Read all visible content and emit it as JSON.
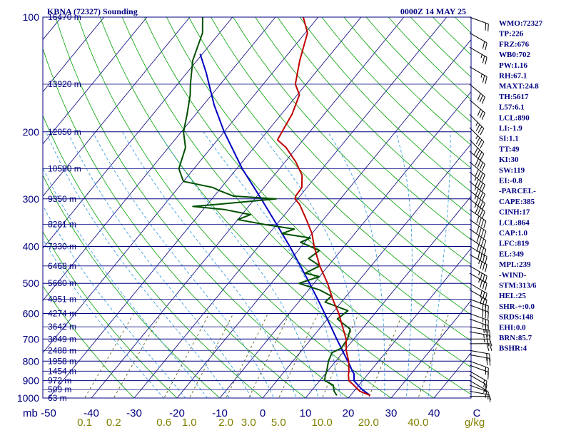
{
  "header": {
    "title": "KBNA (72327) Sounding",
    "datetime": "0000Z 14 MAY 25"
  },
  "indices": [
    "WMO:72327",
    "TP:226",
    "FRZ:676",
    "WB0:702",
    "PW:1.16",
    "RH:67.1",
    "MAXT:24.8",
    "TH:5617",
    "L57:6.1",
    "LCL:890",
    "LI:-1.9",
    "SI:1.1",
    "TT:49",
    "KI:30",
    "SW:119",
    "EI:-0.8",
    "-PARCEL-",
    "CAPE:385",
    "CINH:17",
    "LCL:864",
    "CAP:1.0",
    "LFC:819",
    "EL:349",
    "MPL:239",
    "-WIND-",
    "STM:313/6",
    "HEL:25",
    "SHR-+:0.0",
    "SRDS:148",
    "EHI:0.0",
    "BRN:85.7",
    "BSHR:4"
  ],
  "colors": {
    "frame": "#000080",
    "dry_adiabats": "#00a000",
    "moist_adiabats": "#40a0e0",
    "mixing_ratio": "#505000",
    "temperature": "#c00000",
    "dewpoint": "#005000",
    "parcel": "#0000c0",
    "wind_barbs": "#000000",
    "mixing_labels": "#808000"
  },
  "chart_data": {
    "type": "skew-t",
    "units_label": "mb",
    "mixing_units_label": "g/kg",
    "pressure_labels": [
      "100",
      "200",
      "300",
      "400",
      "500",
      "600",
      "700",
      "800",
      "900",
      "1000"
    ],
    "temperature_labels": [
      "-50",
      "-40",
      "-30",
      "-20",
      "-10",
      "0",
      "10",
      "20",
      "30",
      "40",
      "C"
    ],
    "mixing_ratio_labels": [
      "0.1",
      "0.2",
      "0.6",
      "1.0",
      "2.0",
      "3.0",
      "5.0",
      "10.0",
      "20.0",
      "40.0"
    ],
    "height_levels": [
      {
        "p": 100,
        "label": "16470 m"
      },
      {
        "p": 150,
        "label": "13920 m"
      },
      {
        "p": 200,
        "label": "12050 m"
      },
      {
        "p": 250,
        "label": "10580 m"
      },
      {
        "p": 300,
        "label": "9350 m"
      },
      {
        "p": 350,
        "label": "8281 m"
      },
      {
        "p": 400,
        "label": "7330 m"
      },
      {
        "p": 450,
        "label": "6468 m"
      },
      {
        "p": 500,
        "label": "5680 m"
      },
      {
        "p": 550,
        "label": "4951 m"
      },
      {
        "p": 600,
        "label": "4274 m"
      },
      {
        "p": 650,
        "label": "3642 m"
      },
      {
        "p": 700,
        "label": "3049 m"
      },
      {
        "p": 750,
        "label": "2488 m"
      },
      {
        "p": 800,
        "label": "1958 m"
      },
      {
        "p": 850,
        "label": "1454 m"
      },
      {
        "p": 900,
        "label": "972 m"
      },
      {
        "p": 950,
        "label": "509 m"
      },
      {
        "p": 1000,
        "label": "63 m"
      }
    ],
    "temperature_profile": [
      [
        984,
        24.6
      ],
      [
        960,
        21.4
      ],
      [
        925,
        18.8
      ],
      [
        900,
        16.8
      ],
      [
        870,
        15.6
      ],
      [
        850,
        15.0
      ],
      [
        800,
        13.0
      ],
      [
        750,
        10.4
      ],
      [
        700,
        8.2
      ],
      [
        650,
        5.0
      ],
      [
        600,
        1.6
      ],
      [
        550,
        -2.6
      ],
      [
        500,
        -6.8
      ],
      [
        450,
        -12.0
      ],
      [
        400,
        -17.0
      ],
      [
        370,
        -20.0
      ],
      [
        340,
        -24.0
      ],
      [
        310,
        -28.5
      ],
      [
        300,
        -30.6
      ],
      [
        295,
        -31.0
      ],
      [
        280,
        -31.2
      ],
      [
        260,
        -33.5
      ],
      [
        240,
        -37.5
      ],
      [
        220,
        -42.5
      ],
      [
        210,
        -46.0
      ],
      [
        200,
        -46.5
      ],
      [
        180,
        -47.5
      ],
      [
        160,
        -49.5
      ],
      [
        150,
        -52.5
      ],
      [
        130,
        -56.0
      ],
      [
        110,
        -59.5
      ],
      [
        100,
        -63.5
      ]
    ],
    "dewpoint_profile": [
      [
        984,
        16.8
      ],
      [
        960,
        15.4
      ],
      [
        925,
        14.0
      ],
      [
        900,
        11.2
      ],
      [
        880,
        10.5
      ],
      [
        850,
        9.8
      ],
      [
        800,
        8.3
      ],
      [
        760,
        7.5
      ],
      [
        740,
        8.8
      ],
      [
        700,
        8.5
      ],
      [
        660,
        7.3
      ],
      [
        620,
        2.3
      ],
      [
        590,
        3.2
      ],
      [
        560,
        -3.8
      ],
      [
        540,
        -3.5
      ],
      [
        520,
        -7.5
      ],
      [
        500,
        -13.5
      ],
      [
        480,
        -10.0
      ],
      [
        470,
        -14.0
      ],
      [
        450,
        -12.0
      ],
      [
        430,
        -16.0
      ],
      [
        410,
        -15.0
      ],
      [
        390,
        -21.0
      ],
      [
        380,
        -19.5
      ],
      [
        370,
        -27.0
      ],
      [
        360,
        -25.0
      ],
      [
        350,
        -33.0
      ],
      [
        340,
        -40.0
      ],
      [
        330,
        -38.0
      ],
      [
        320,
        -45.0
      ],
      [
        314,
        -53.0
      ],
      [
        310,
        -47.5
      ],
      [
        300,
        -35.0
      ],
      [
        295,
        -45.5
      ],
      [
        285,
        -50.0
      ],
      [
        280,
        -52.0
      ],
      [
        270,
        -60.0
      ],
      [
        250,
        -63.5
      ],
      [
        220,
        -66.0
      ],
      [
        200,
        -69.5
      ],
      [
        180,
        -72.0
      ],
      [
        160,
        -75.0
      ],
      [
        150,
        -77.0
      ],
      [
        130,
        -81.0
      ],
      [
        110,
        -84.0
      ],
      [
        100,
        -87.0
      ]
    ],
    "parcel_profile": [
      [
        984,
        24.6
      ],
      [
        950,
        21.6
      ],
      [
        920,
        19.4
      ],
      [
        900,
        18.0
      ],
      [
        864,
        16.7
      ],
      [
        850,
        15.8
      ],
      [
        819,
        14.0
      ],
      [
        800,
        12.8
      ],
      [
        750,
        9.5
      ],
      [
        700,
        6.0
      ],
      [
        650,
        2.3
      ],
      [
        600,
        -1.7
      ],
      [
        550,
        -6.1
      ],
      [
        500,
        -11.0
      ],
      [
        450,
        -16.5
      ],
      [
        400,
        -22.7
      ],
      [
        350,
        -30.0
      ],
      [
        300,
        -38.5
      ],
      [
        250,
        -48.7
      ],
      [
        200,
        -60.0
      ],
      [
        170,
        -67.5
      ],
      [
        140,
        -75.5
      ],
      [
        125,
        -80.5
      ]
    ],
    "wind_barbs": [
      {
        "p": 990,
        "dir": 270,
        "spd": 5
      },
      {
        "p": 960,
        "dir": 280,
        "spd": 10
      },
      {
        "p": 925,
        "dir": 290,
        "spd": 10
      },
      {
        "p": 900,
        "dir": 300,
        "spd": 15
      },
      {
        "p": 870,
        "dir": 300,
        "spd": 15
      },
      {
        "p": 850,
        "dir": 300,
        "spd": 15
      },
      {
        "p": 820,
        "dir": 290,
        "spd": 15
      },
      {
        "p": 800,
        "dir": 290,
        "spd": 15
      },
      {
        "p": 770,
        "dir": 280,
        "spd": 20
      },
      {
        "p": 750,
        "dir": 280,
        "spd": 20
      },
      {
        "p": 720,
        "dir": 270,
        "spd": 20
      },
      {
        "p": 700,
        "dir": 270,
        "spd": 25
      },
      {
        "p": 670,
        "dir": 280,
        "spd": 25
      },
      {
        "p": 650,
        "dir": 280,
        "spd": 25
      },
      {
        "p": 620,
        "dir": 290,
        "spd": 25
      },
      {
        "p": 600,
        "dir": 290,
        "spd": 25
      },
      {
        "p": 570,
        "dir": 290,
        "spd": 30
      },
      {
        "p": 550,
        "dir": 290,
        "spd": 30
      },
      {
        "p": 520,
        "dir": 300,
        "spd": 30
      },
      {
        "p": 500,
        "dir": 300,
        "spd": 30
      },
      {
        "p": 470,
        "dir": 300,
        "spd": 35
      },
      {
        "p": 450,
        "dir": 300,
        "spd": 35
      },
      {
        "p": 420,
        "dir": 300,
        "spd": 35
      },
      {
        "p": 400,
        "dir": 300,
        "spd": 40
      },
      {
        "p": 380,
        "dir": 305,
        "spd": 40
      },
      {
        "p": 360,
        "dir": 305,
        "spd": 40
      },
      {
        "p": 340,
        "dir": 305,
        "spd": 40
      },
      {
        "p": 320,
        "dir": 305,
        "spd": 40
      },
      {
        "p": 300,
        "dir": 310,
        "spd": 45
      },
      {
        "p": 285,
        "dir": 310,
        "spd": 45
      },
      {
        "p": 270,
        "dir": 310,
        "spd": 45
      },
      {
        "p": 255,
        "dir": 310,
        "spd": 45
      },
      {
        "p": 240,
        "dir": 310,
        "spd": 40
      },
      {
        "p": 225,
        "dir": 310,
        "spd": 40
      },
      {
        "p": 210,
        "dir": 315,
        "spd": 40
      },
      {
        "p": 195,
        "dir": 315,
        "spd": 35
      },
      {
        "p": 180,
        "dir": 315,
        "spd": 35
      },
      {
        "p": 165,
        "dir": 310,
        "spd": 30
      },
      {
        "p": 150,
        "dir": 310,
        "spd": 30
      },
      {
        "p": 135,
        "dir": 300,
        "spd": 25
      },
      {
        "p": 120,
        "dir": 300,
        "spd": 25
      },
      {
        "p": 110,
        "dir": 300,
        "spd": 20
      },
      {
        "p": 100,
        "dir": 290,
        "spd": 20
      }
    ]
  }
}
